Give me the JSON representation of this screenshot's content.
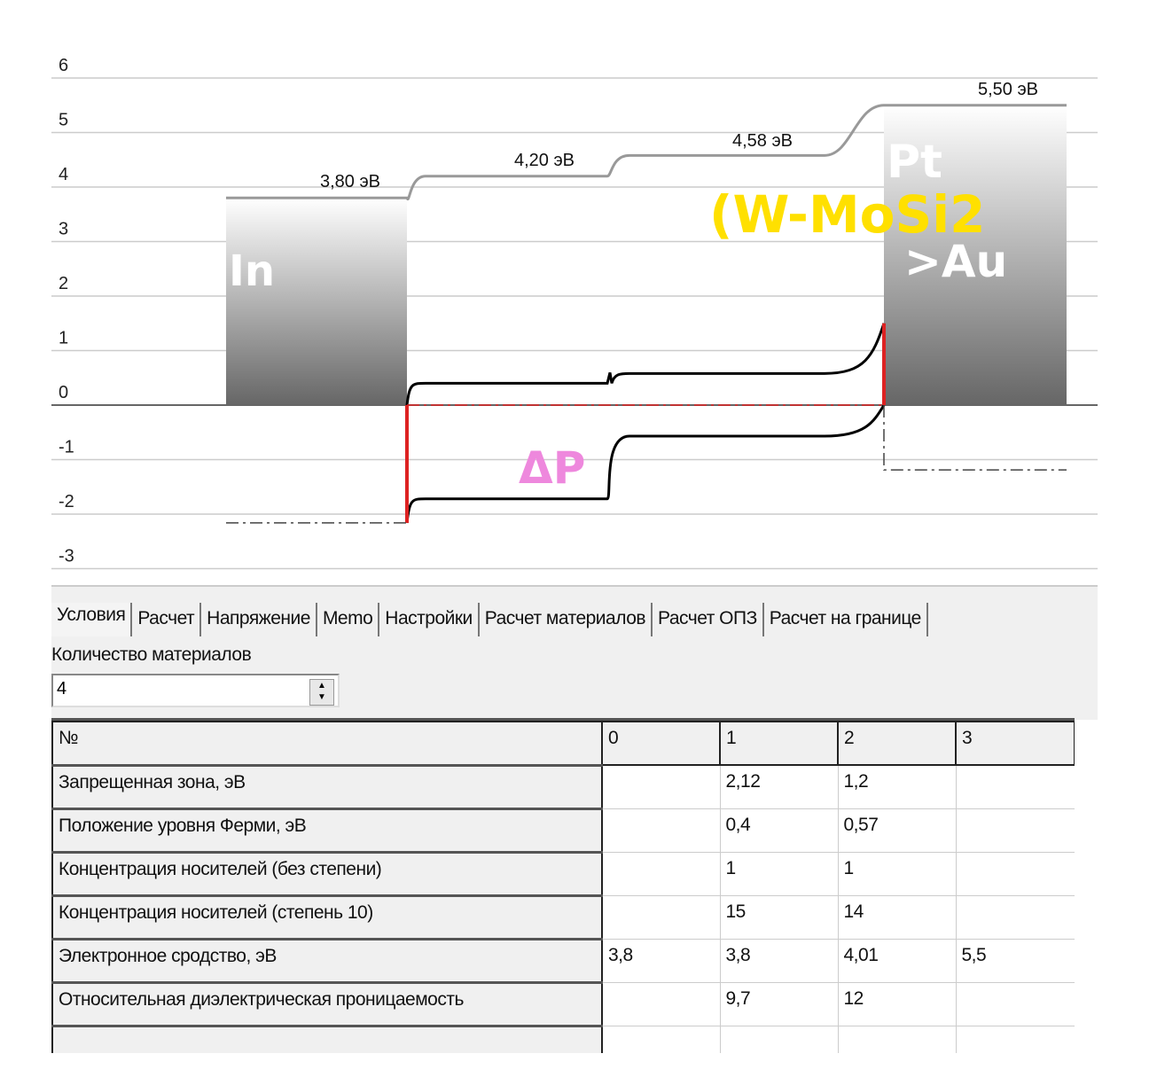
{
  "chart_data": {
    "type": "line",
    "y_ticks": [
      6,
      5,
      4,
      3,
      2,
      1,
      0,
      -1,
      -2,
      -3
    ],
    "ylim": [
      -3,
      6
    ],
    "grid": true,
    "materials": [
      {
        "name": "In",
        "vacuum_level": 3.8,
        "fermi_depth": -2.16
      },
      {
        "vacuum_level": 4.2,
        "conduction_band": 0.4,
        "valence_band": -1.72
      },
      {
        "vacuum_level": 4.58,
        "conduction_band": 0.58,
        "valence_band": -0.57
      },
      {
        "name": "Pt",
        "vacuum_level": 5.5,
        "fermi_depth": -1.19
      }
    ],
    "level_labels": [
      "3,80 эВ",
      "4,20 эВ",
      "4,58 эВ",
      "5,50 эВ"
    ],
    "annotations": {
      "in": "In",
      "pt": "Pt",
      "w_mosi2": "(W-MoSi2",
      ">au": ">Au",
      "dp": "ΔP"
    },
    "colors": {
      "vacuum": "#999999",
      "bands": "#000000",
      "fermi": "#dd2222",
      "in_note": "#ffffff",
      "yellow_note": "#ffe000",
      "pink_note": "#ee88dd"
    }
  },
  "tabs": [
    "Условия",
    "Расчет",
    "Напряжение",
    "Memo",
    "Настройки",
    "Расчет материалов",
    "Расчет ОПЗ",
    "Расчет на границе"
  ],
  "materials_count": {
    "label": "Количество материалов",
    "value": "4"
  },
  "table": {
    "header": [
      "№",
      "0",
      "1",
      "2",
      "3"
    ],
    "rows": [
      [
        "Запрещенная зона, эВ",
        "",
        "2,12",
        "1,2",
        ""
      ],
      [
        "Положение уровня Ферми, эВ",
        "",
        "0,4",
        "0,57",
        ""
      ],
      [
        "Концентрация носителей (без степени)",
        "",
        "1",
        "1",
        ""
      ],
      [
        "Концентрация носителей (степень 10)",
        "",
        "15",
        "14",
        ""
      ],
      [
        "Электронное сродство, эВ",
        "3,8",
        "3,8",
        "4,01",
        "5,5"
      ],
      [
        "Относительная диэлектрическая проницаемость",
        "",
        "9,7",
        "12",
        ""
      ],
      [
        "",
        "",
        "",
        "",
        ""
      ]
    ]
  }
}
